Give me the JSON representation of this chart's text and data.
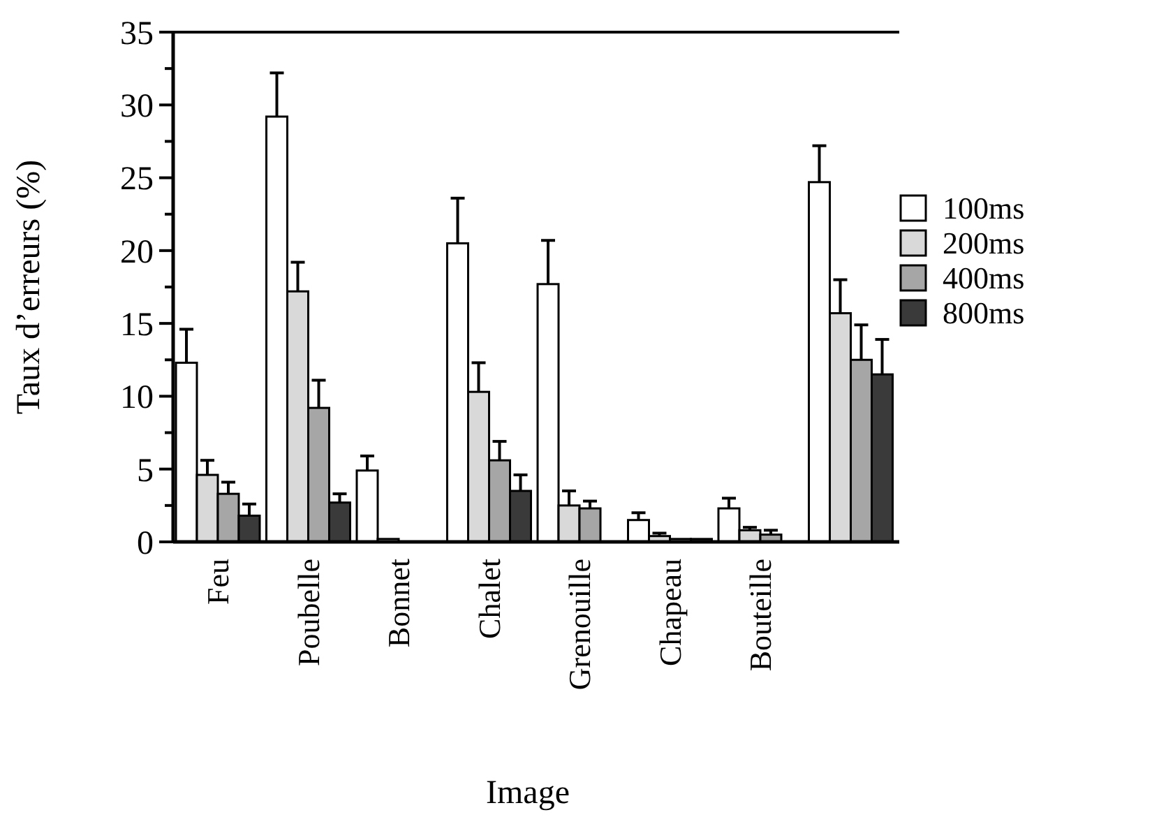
{
  "chart_data": {
    "type": "bar",
    "xlabel": "Image",
    "ylabel": "Taux d’erreurs (%)",
    "categories": [
      "Feu",
      "Poubelle",
      "Bonnet",
      "Chalet",
      "Grenouille",
      "Chapeau",
      "Bouteille",
      null
    ],
    "series": [
      {
        "name": "100ms",
        "color": "#ffffff",
        "values": [
          12.3,
          29.2,
          4.9,
          20.5,
          17.7,
          1.5,
          2.3,
          24.7
        ],
        "errors": [
          2.3,
          3.0,
          1.0,
          3.1,
          3.0,
          0.5,
          0.7,
          2.5
        ]
      },
      {
        "name": "200ms",
        "color": "#d9d9d9",
        "values": [
          4.6,
          17.2,
          0.2,
          10.3,
          2.5,
          0.4,
          0.8,
          15.7
        ],
        "errors": [
          1.0,
          2.0,
          null,
          2.0,
          1.0,
          0.2,
          0.2,
          2.3
        ]
      },
      {
        "name": "400ms",
        "color": "#a6a6a6",
        "values": [
          3.3,
          9.2,
          null,
          5.6,
          2.3,
          0.2,
          0.5,
          12.5
        ],
        "errors": [
          0.8,
          1.9,
          null,
          1.3,
          0.5,
          null,
          0.3,
          2.4
        ]
      },
      {
        "name": "800ms",
        "color": "#3a3a3a",
        "values": [
          1.8,
          2.7,
          null,
          3.5,
          null,
          0.2,
          null,
          11.5
        ],
        "errors": [
          0.8,
          0.6,
          null,
          1.1,
          null,
          null,
          null,
          2.4
        ]
      }
    ],
    "ylim": [
      0,
      35
    ],
    "yticks": [
      0,
      {
        "value": 2.5,
        "label": null
      },
      5,
      {
        "value": 7.5,
        "label": null
      },
      10,
      {
        "value": 12.5,
        "label": null
      },
      15,
      {
        "value": 17.5,
        "label": null
      },
      20,
      {
        "value": 22.5,
        "label": null
      },
      25,
      {
        "value": 27.5,
        "label": null
      },
      30,
      {
        "value": 32.5,
        "label": null
      },
      35
    ],
    "grid": false,
    "legend": "right"
  }
}
